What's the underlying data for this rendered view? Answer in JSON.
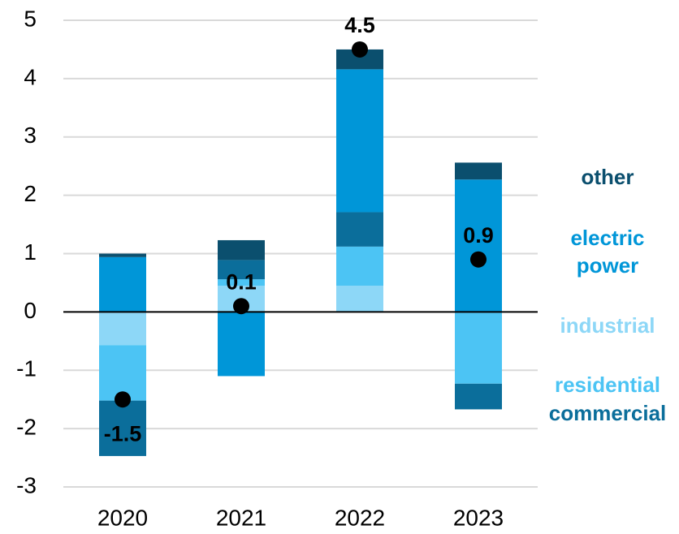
{
  "chart_data": {
    "type": "bar",
    "stacked": true,
    "categories": [
      "2020",
      "2021",
      "2022",
      "2023"
    ],
    "series": [
      {
        "name": "industrial",
        "color": "#8dd7f7",
        "values": [
          -0.57,
          0.45,
          0.45,
          0
        ]
      },
      {
        "name": "residential",
        "color": "#4cc4f4",
        "values": [
          -0.95,
          0.11,
          0.67,
          -1.23
        ]
      },
      {
        "name": "commercial",
        "color": "#0b6e9b",
        "values": [
          -0.95,
          0.33,
          0.59,
          -0.44
        ]
      },
      {
        "name": "electric power",
        "color": "#0096d8",
        "values": [
          0.94,
          -1.1,
          2.45,
          2.27
        ]
      },
      {
        "name": "other",
        "color": "#0b4f6e",
        "values": [
          0.06,
          0.34,
          0.34,
          0.29
        ]
      }
    ],
    "totals": {
      "color": "#000000",
      "values": [
        -1.5,
        0.1,
        4.5,
        0.9
      ]
    },
    "ylim": [
      -3,
      5
    ],
    "yticks": [
      -3,
      -2,
      -1,
      0,
      1,
      2,
      3,
      4,
      5
    ],
    "grid": true
  }
}
